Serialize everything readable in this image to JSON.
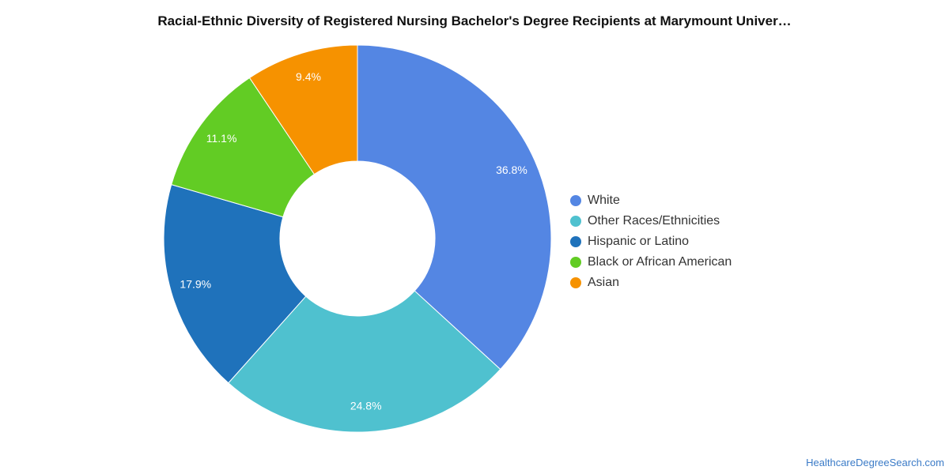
{
  "chart_data": {
    "type": "pie",
    "variant": "donut",
    "title": "Racial-Ethnic Diversity of Registered Nursing Bachelor's Degree Recipients at Marymount Univer…",
    "slices": [
      {
        "name": "White",
        "value": 36.8,
        "label": "36.8%",
        "color": "#5486e3"
      },
      {
        "name": "Other Races/Ethnicities",
        "value": 24.8,
        "label": "24.8%",
        "color": "#4fc1cf"
      },
      {
        "name": "Hispanic or Latino",
        "value": 17.9,
        "label": "17.9%",
        "color": "#1f72bb"
      },
      {
        "name": "Black or African American",
        "value": 11.1,
        "label": "11.1%",
        "color": "#62cc24"
      },
      {
        "name": "Asian",
        "value": 9.4,
        "label": "9.4%",
        "color": "#f69200"
      }
    ],
    "legend_position": "right"
  },
  "source": {
    "text": "HealthcareDegreeSearch.com"
  }
}
